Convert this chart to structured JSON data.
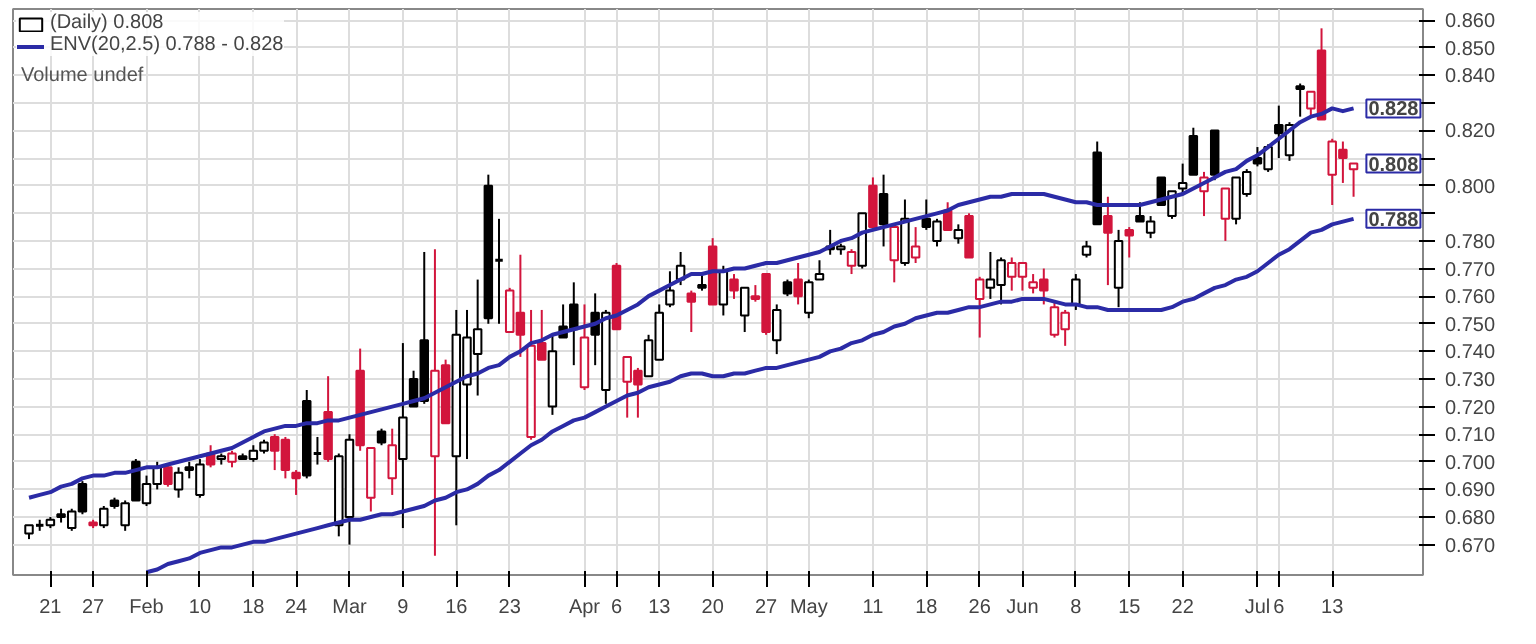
{
  "chart_data": {
    "type": "candlestick",
    "categories": [
      null,
      null,
      "21",
      null,
      null,
      null,
      "27",
      null,
      null,
      null,
      null,
      "Feb",
      null,
      null,
      null,
      null,
      "10",
      null,
      null,
      null,
      null,
      "18",
      null,
      null,
      null,
      "24",
      null,
      null,
      null,
      null,
      "Mar",
      null,
      null,
      null,
      null,
      "9",
      null,
      null,
      null,
      null,
      "16",
      null,
      null,
      null,
      null,
      "23",
      null,
      null,
      null,
      null,
      null,
      null,
      "Apr",
      null,
      null,
      "6",
      null,
      null,
      null,
      "13",
      null,
      null,
      null,
      null,
      "20",
      null,
      null,
      null,
      null,
      "27",
      null,
      null,
      null,
      "May",
      null,
      null,
      null,
      null,
      null,
      "11",
      null,
      null,
      null,
      null,
      "18",
      null,
      null,
      null,
      null,
      "26",
      null,
      null,
      null,
      "Jun",
      null,
      null,
      null,
      null,
      "8",
      null,
      null,
      null,
      null,
      "15",
      null,
      null,
      null,
      null,
      "22",
      null,
      null,
      null,
      null,
      null,
      null,
      "Jul",
      null,
      "6",
      null,
      null,
      null,
      null,
      "13",
      null,
      null
    ],
    "series": [
      {
        "name": "(Daily) 0.808",
        "value_labels": [
          null,
          null,
          null,
          null,
          null,
          null,
          null,
          null,
          null,
          null,
          null,
          null,
          null,
          null,
          null,
          null,
          null,
          null,
          null,
          null,
          null,
          null,
          null,
          null,
          null,
          null,
          null,
          null,
          null,
          null,
          null,
          null,
          null,
          null,
          null,
          null,
          null,
          null,
          null,
          null,
          null,
          null,
          null,
          null,
          null,
          null,
          null,
          null,
          null,
          null,
          null,
          null,
          null,
          null,
          null,
          null,
          null,
          null,
          null,
          null,
          null,
          null,
          null,
          null,
          null,
          null,
          null,
          null,
          null,
          null,
          null,
          null,
          null,
          null,
          null,
          null,
          null,
          null,
          null,
          null,
          null,
          null,
          null,
          null,
          null,
          null,
          null,
          null,
          null,
          null,
          null,
          null,
          null,
          null,
          null,
          null,
          null,
          null,
          null,
          null,
          null,
          null,
          null,
          null,
          null,
          null,
          null,
          null,
          null,
          null,
          null,
          null,
          null,
          null,
          null,
          null,
          null,
          null,
          null,
          null,
          null,
          null,
          null,
          null,
          "0.808"
        ],
        "ohlc": [
          [
            0.674,
            0.677,
            0.672,
            0.677
          ],
          [
            0.677,
            0.679,
            0.675,
            0.677
          ],
          [
            0.677,
            0.68,
            0.676,
            0.679
          ],
          [
            0.681,
            0.683,
            0.678,
            0.68
          ],
          [
            0.676,
            0.683,
            0.675,
            0.682
          ],
          [
            0.692,
            0.693,
            0.681,
            0.682
          ],
          [
            0.678,
            0.679,
            0.676,
            0.677
          ],
          [
            0.677,
            0.684,
            0.676,
            0.683
          ],
          [
            0.686,
            0.687,
            0.683,
            0.684
          ],
          [
            0.677,
            0.686,
            0.675,
            0.685
          ],
          [
            0.7,
            0.701,
            0.686,
            0.686
          ],
          [
            0.685,
            0.695,
            0.684,
            0.692
          ],
          [
            0.692,
            0.7,
            0.69,
            0.698
          ],
          [
            0.698,
            0.699,
            0.691,
            0.692
          ],
          [
            0.69,
            0.698,
            0.687,
            0.696
          ],
          [
            0.698,
            0.7,
            0.694,
            0.697
          ],
          [
            0.688,
            0.701,
            0.687,
            0.699
          ],
          [
            0.703,
            0.706,
            0.698,
            0.699
          ],
          [
            0.701,
            0.703,
            0.699,
            0.702
          ],
          [
            0.7,
            0.704,
            0.698,
            0.703
          ],
          [
            0.702,
            0.703,
            0.701,
            0.701
          ],
          [
            0.701,
            0.706,
            0.7,
            0.704
          ],
          [
            0.704,
            0.708,
            0.703,
            0.707
          ],
          [
            0.709,
            0.71,
            0.697,
            0.704
          ],
          [
            0.708,
            0.709,
            0.694,
            0.697
          ],
          [
            0.696,
            0.697,
            0.688,
            0.694
          ],
          [
            0.722,
            0.726,
            0.694,
            0.695
          ],
          [
            0.703,
            0.709,
            0.699,
            0.703
          ],
          [
            0.718,
            0.731,
            0.7,
            0.701
          ],
          [
            0.677,
            0.703,
            0.673,
            0.702
          ],
          [
            0.68,
            0.71,
            0.67,
            0.708
          ],
          [
            0.733,
            0.741,
            0.704,
            0.706
          ],
          [
            0.687,
            0.705,
            0.682,
            0.705
          ],
          [
            0.711,
            0.712,
            0.706,
            0.707
          ],
          [
            0.694,
            0.712,
            0.688,
            0.706
          ],
          [
            0.701,
            0.743,
            0.676,
            0.716
          ],
          [
            0.73,
            0.733,
            0.72,
            0.72
          ],
          [
            0.744,
            0.776,
            0.721,
            0.722
          ],
          [
            0.702,
            0.777,
            0.666,
            0.733
          ],
          [
            0.735,
            0.737,
            0.714,
            0.714
          ],
          [
            0.702,
            0.755,
            0.677,
            0.746
          ],
          [
            0.728,
            0.755,
            0.701,
            0.745
          ],
          [
            0.739,
            0.766,
            0.724,
            0.748
          ],
          [
            0.8,
            0.804,
            0.75,
            0.752
          ],
          [
            0.773,
            0.788,
            0.75,
            0.773
          ],
          [
            0.747,
            0.763,
            0.747,
            0.762
          ],
          [
            0.754,
            0.775,
            0.738,
            0.746
          ],
          [
            0.709,
            0.755,
            0.708,
            0.742
          ],
          [
            0.743,
            0.755,
            0.737,
            0.737
          ],
          [
            0.72,
            0.746,
            0.717,
            0.74
          ],
          [
            0.749,
            0.757,
            0.745,
            0.745
          ],
          [
            0.757,
            0.765,
            0.735,
            0.748
          ],
          [
            0.727,
            0.757,
            0.726,
            0.745
          ],
          [
            0.754,
            0.761,
            0.735,
            0.746
          ],
          [
            0.726,
            0.755,
            0.721,
            0.754
          ],
          [
            0.771,
            0.772,
            0.748,
            0.748
          ],
          [
            0.729,
            0.738,
            0.716,
            0.738
          ],
          [
            0.733,
            0.734,
            0.716,
            0.728
          ],
          [
            0.731,
            0.746,
            0.731,
            0.744
          ],
          [
            0.737,
            0.757,
            0.737,
            0.754
          ],
          [
            0.757,
            0.769,
            0.756,
            0.762
          ],
          [
            0.766,
            0.776,
            0.764,
            0.771
          ],
          [
            0.761,
            0.762,
            0.747,
            0.758
          ],
          [
            0.764,
            0.768,
            0.762,
            0.763
          ],
          [
            0.778,
            0.781,
            0.757,
            0.757
          ],
          [
            0.757,
            0.771,
            0.753,
            0.769
          ],
          [
            0.766,
            0.768,
            0.759,
            0.762
          ],
          [
            0.753,
            0.763,
            0.747,
            0.763
          ],
          [
            0.76,
            0.764,
            0.758,
            0.759
          ],
          [
            0.768,
            0.768,
            0.746,
            0.747
          ],
          [
            0.744,
            0.757,
            0.739,
            0.755
          ],
          [
            0.765,
            0.766,
            0.76,
            0.761
          ],
          [
            0.766,
            0.772,
            0.757,
            0.76
          ],
          [
            0.754,
            0.766,
            0.752,
            0.765
          ],
          [
            0.766,
            0.773,
            0.766,
            0.768
          ],
          [
            0.778,
            0.784,
            0.775,
            0.777
          ],
          [
            0.777,
            0.779,
            0.775,
            0.778
          ],
          [
            0.771,
            0.777,
            0.768,
            0.776
          ],
          [
            0.771,
            0.79,
            0.77,
            0.79
          ],
          [
            0.8,
            0.803,
            0.785,
            0.785
          ],
          [
            0.797,
            0.804,
            0.778,
            0.786
          ],
          [
            0.773,
            0.786,
            0.765,
            0.785
          ],
          [
            0.772,
            0.795,
            0.771,
            0.788
          ],
          [
            0.774,
            0.785,
            0.772,
            0.778
          ],
          [
            0.788,
            0.795,
            0.784,
            0.785
          ],
          [
            0.78,
            0.788,
            0.778,
            0.787
          ],
          [
            0.791,
            0.794,
            0.784,
            0.784
          ],
          [
            0.781,
            0.786,
            0.779,
            0.784
          ],
          [
            0.789,
            0.79,
            0.774,
            0.774
          ],
          [
            0.759,
            0.767,
            0.745,
            0.766
          ],
          [
            0.763,
            0.776,
            0.759,
            0.766
          ],
          [
            0.764,
            0.774,
            0.757,
            0.773
          ],
          [
            0.767,
            0.774,
            0.762,
            0.772
          ],
          [
            0.767,
            0.772,
            0.762,
            0.772
          ],
          [
            0.763,
            0.768,
            0.761,
            0.765
          ],
          [
            0.766,
            0.77,
            0.757,
            0.762
          ],
          [
            0.746,
            0.758,
            0.745,
            0.756
          ],
          [
            0.748,
            0.755,
            0.742,
            0.754
          ],
          [
            0.757,
            0.768,
            0.755,
            0.766
          ],
          [
            0.775,
            0.78,
            0.774,
            0.778
          ],
          [
            0.812,
            0.816,
            0.786,
            0.786
          ],
          [
            0.789,
            0.796,
            0.764,
            0.783
          ],
          [
            0.763,
            0.784,
            0.756,
            0.78
          ],
          [
            0.784,
            0.785,
            0.774,
            0.782
          ],
          [
            0.789,
            0.794,
            0.787,
            0.787
          ],
          [
            0.783,
            0.789,
            0.781,
            0.787
          ],
          [
            0.803,
            0.803,
            0.793,
            0.793
          ],
          [
            0.789,
            0.798,
            0.788,
            0.798
          ],
          [
            0.799,
            0.808,
            0.797,
            0.801
          ],
          [
            0.818,
            0.821,
            0.804,
            0.804
          ],
          [
            0.798,
            0.805,
            0.789,
            0.803
          ],
          [
            0.82,
            0.82,
            0.802,
            0.804
          ],
          [
            0.788,
            0.799,
            0.78,
            0.799
          ],
          [
            0.788,
            0.803,
            0.786,
            0.803
          ],
          [
            0.797,
            0.806,
            0.796,
            0.805
          ],
          [
            0.81,
            0.814,
            0.807,
            0.808
          ],
          [
            0.806,
            0.815,
            0.805,
            0.814
          ],
          [
            0.822,
            0.829,
            0.81,
            0.819
          ],
          [
            0.811,
            0.823,
            0.809,
            0.822
          ],
          [
            0.836,
            0.837,
            0.825,
            0.835
          ],
          [
            0.828,
            0.834,
            0.825,
            0.834
          ],
          [
            0.849,
            0.857,
            0.824,
            0.824
          ],
          [
            0.804,
            0.817,
            0.793,
            0.816
          ],
          [
            0.813,
            0.816,
            0.801,
            0.81
          ],
          [
            0.806,
            0.808,
            0.796,
            0.808
          ]
        ],
        "colors": [
          "#000000",
          "#000000",
          "#000000",
          "#000000",
          "#000000",
          "#000000",
          "#d2153c",
          "#000000",
          "#000000",
          "#000000",
          "#000000",
          "#000000",
          "#000000",
          "#d2153c",
          "#000000",
          "#000000",
          "#000000",
          "#d2153c",
          "#000000",
          "#d2153c",
          "#000000",
          "#000000",
          "#000000",
          "#d2153c",
          "#d2153c",
          "#d2153c",
          "#000000",
          "#000000",
          "#d2153c",
          "#000000",
          "#000000",
          "#d2153c",
          "#d2153c",
          "#000000",
          "#d2153c",
          "#000000",
          "#000000",
          "#000000",
          "#d2153c",
          "#d2153c",
          "#000000",
          "#000000",
          "#000000",
          "#000000",
          "#000000",
          "#d2153c",
          "#d2153c",
          "#d2153c",
          "#d2153c",
          "#000000",
          "#000000",
          "#000000",
          "#d2153c",
          "#000000",
          "#000000",
          "#d2153c",
          "#d2153c",
          "#d2153c",
          "#000000",
          "#000000",
          "#000000",
          "#000000",
          "#d2153c",
          "#000000",
          "#d2153c",
          "#000000",
          "#d2153c",
          "#000000",
          "#d2153c",
          "#d2153c",
          "#000000",
          "#000000",
          "#d2153c",
          "#000000",
          "#000000",
          "#000000",
          "#000000",
          "#d2153c",
          "#000000",
          "#d2153c",
          "#000000",
          "#d2153c",
          "#000000",
          "#d2153c",
          "#000000",
          "#000000",
          "#d2153c",
          "#000000",
          "#d2153c",
          "#d2153c",
          "#000000",
          "#000000",
          "#d2153c",
          "#d2153c",
          "#d2153c",
          "#d2153c",
          "#d2153c",
          "#d2153c",
          "#000000",
          "#000000",
          "#000000",
          "#d2153c",
          "#000000",
          "#d2153c",
          "#000000",
          "#000000",
          "#000000",
          "#000000",
          "#000000",
          "#000000",
          "#d2153c",
          "#000000",
          "#d2153c",
          "#000000",
          "#000000",
          "#000000",
          "#000000",
          "#000000",
          "#000000",
          "#000000",
          "#d2153c",
          "#d2153c",
          "#d2153c",
          "#d2153c",
          "#d2153c"
        ]
      },
      {
        "name": "ENV(20,2.5) 0.788 - 0.828",
        "type": "line",
        "color": "#2b2ba6",
        "value_labels": [
          null,
          null,
          null,
          null,
          null,
          null,
          null,
          null,
          null,
          null,
          null,
          null,
          null,
          null,
          null,
          null,
          null,
          null,
          null,
          null,
          null,
          null,
          null,
          null,
          null,
          null,
          null,
          null,
          null,
          null,
          null,
          null,
          null,
          null,
          null,
          null,
          null,
          null,
          null,
          null,
          null,
          null,
          null,
          null,
          null,
          null,
          null,
          null,
          null,
          null,
          null,
          null,
          null,
          null,
          null,
          null,
          null,
          null,
          null,
          null,
          null,
          null,
          null,
          null,
          null,
          null,
          null,
          null,
          null,
          null,
          null,
          null,
          null,
          null,
          null,
          null,
          null,
          null,
          null,
          null,
          null,
          null,
          null,
          null,
          null,
          null,
          null,
          null,
          null,
          null,
          null,
          null,
          null,
          null,
          null,
          null,
          null,
          null,
          null,
          null,
          null,
          null,
          null,
          null,
          null,
          null,
          null,
          null,
          null,
          null,
          null,
          null,
          null,
          null,
          null,
          null,
          null,
          null,
          null,
          null,
          null,
          null,
          null,
          null,
          "0.828"
        ],
        "values": [
          0.687,
          0.688,
          0.689,
          0.691,
          0.692,
          0.694,
          0.695,
          0.695,
          0.696,
          0.696,
          0.697,
          0.698,
          0.698,
          0.699,
          0.7,
          0.701,
          0.702,
          0.703,
          0.704,
          0.705,
          0.707,
          0.709,
          0.711,
          0.712,
          0.713,
          0.713,
          0.714,
          0.714,
          0.715,
          0.715,
          0.716,
          0.717,
          0.718,
          0.719,
          0.72,
          0.721,
          0.722,
          0.723,
          0.725,
          0.727,
          0.729,
          0.731,
          0.732,
          0.734,
          0.735,
          0.738,
          0.74,
          0.743,
          0.744,
          0.746,
          0.747,
          0.748,
          0.749,
          0.75,
          0.752,
          0.753,
          0.755,
          0.757,
          0.76,
          0.762,
          0.764,
          0.766,
          0.768,
          0.768,
          0.769,
          0.769,
          0.77,
          0.77,
          0.771,
          0.772,
          0.772,
          0.773,
          0.774,
          0.775,
          0.776,
          0.778,
          0.78,
          0.781,
          0.783,
          0.784,
          0.785,
          0.786,
          0.787,
          0.788,
          0.789,
          0.79,
          0.791,
          0.793,
          0.794,
          0.795,
          0.796,
          0.796,
          0.797,
          0.797,
          0.797,
          0.797,
          0.796,
          0.795,
          0.794,
          0.794,
          0.793,
          0.793,
          0.793,
          0.793,
          0.793,
          0.794,
          0.795,
          0.796,
          0.797,
          0.799,
          0.801,
          0.803,
          0.805,
          0.806,
          0.809,
          0.811,
          0.814,
          0.817,
          0.82,
          0.823,
          0.825,
          0.826,
          0.828,
          0.827,
          0.828
        ]
      },
      {
        "type": "line",
        "color": "#2b2ba6",
        "value_labels": [
          null,
          null,
          null,
          null,
          null,
          null,
          null,
          null,
          null,
          null,
          null,
          null,
          null,
          null,
          null,
          null,
          null,
          null,
          null,
          null,
          null,
          null,
          null,
          null,
          null,
          null,
          null,
          null,
          null,
          null,
          null,
          null,
          null,
          null,
          null,
          null,
          null,
          null,
          null,
          null,
          null,
          null,
          null,
          null,
          null,
          null,
          null,
          null,
          null,
          null,
          null,
          null,
          null,
          null,
          null,
          null,
          null,
          null,
          null,
          null,
          null,
          null,
          null,
          null,
          null,
          null,
          null,
          null,
          null,
          null,
          null,
          null,
          null,
          null,
          null,
          null,
          null,
          null,
          null,
          null,
          null,
          null,
          null,
          null,
          null,
          null,
          null,
          null,
          null,
          null,
          null,
          null,
          null,
          null,
          null,
          null,
          null,
          null,
          null,
          null,
          null,
          null,
          null,
          null,
          null,
          null,
          null,
          null,
          null,
          null,
          null,
          null,
          null,
          null,
          null,
          null,
          null,
          null,
          null,
          null,
          null,
          null,
          null,
          null,
          "0.788"
        ],
        "values": [
          null,
          null,
          null,
          null,
          null,
          null,
          null,
          null,
          null,
          null,
          null,
          0.66,
          0.661,
          0.663,
          0.664,
          0.665,
          0.667,
          0.668,
          0.669,
          0.669,
          0.67,
          0.671,
          0.671,
          0.672,
          0.673,
          0.674,
          0.675,
          0.676,
          0.677,
          0.678,
          0.679,
          0.679,
          0.68,
          0.681,
          0.681,
          0.682,
          0.683,
          0.684,
          0.686,
          0.687,
          0.689,
          0.69,
          0.692,
          0.695,
          0.697,
          0.7,
          0.703,
          0.706,
          0.708,
          0.711,
          0.713,
          0.715,
          0.716,
          0.718,
          0.72,
          0.722,
          0.724,
          0.725,
          0.727,
          0.728,
          0.729,
          0.731,
          0.732,
          0.732,
          0.731,
          0.731,
          0.732,
          0.732,
          0.733,
          0.734,
          0.734,
          0.735,
          0.736,
          0.737,
          0.738,
          0.74,
          0.741,
          0.743,
          0.744,
          0.746,
          0.747,
          0.749,
          0.75,
          0.752,
          0.753,
          0.754,
          0.754,
          0.755,
          0.756,
          0.756,
          0.757,
          0.758,
          0.758,
          0.759,
          0.759,
          0.759,
          0.758,
          0.757,
          0.757,
          0.756,
          0.756,
          0.755,
          0.755,
          0.755,
          0.755,
          0.755,
          0.755,
          0.756,
          0.758,
          0.759,
          0.761,
          0.763,
          0.764,
          0.766,
          0.767,
          0.769,
          0.772,
          0.775,
          0.777,
          0.78,
          0.783,
          0.784,
          0.786,
          0.787,
          0.788
        ]
      }
    ],
    "ylim": [
      0.659,
      0.864
    ],
    "yticks": [
      {
        "value": 0.67,
        "label": "0.670"
      },
      {
        "value": 0.68,
        "label": "0.680"
      },
      {
        "value": 0.69,
        "label": "0.690"
      },
      {
        "value": 0.7,
        "label": "0.700"
      },
      {
        "value": 0.71,
        "label": "0.710"
      },
      {
        "value": 0.72,
        "label": "0.720"
      },
      {
        "value": 0.73,
        "label": "0.730"
      },
      {
        "value": 0.74,
        "label": "0.740"
      },
      {
        "value": 0.75,
        "label": "0.750"
      },
      {
        "value": 0.76,
        "label": "0.760"
      },
      {
        "value": 0.77,
        "label": "0.770"
      },
      {
        "value": 0.78,
        "label": "0.780"
      },
      {
        "value": 0.79,
        "label": null
      },
      {
        "value": 0.8,
        "label": "0.800"
      },
      {
        "value": 0.81,
        "label": null
      },
      {
        "value": 0.82,
        "label": "0.820"
      },
      {
        "value": 0.83,
        "label": null
      },
      {
        "value": 0.84,
        "label": "0.840"
      },
      {
        "value": 0.85,
        "label": "0.850"
      },
      {
        "value": 0.86,
        "label": "0.860"
      }
    ],
    "annotations": [
      "Volume undef"
    ],
    "grid": true,
    "legend": "top left"
  }
}
